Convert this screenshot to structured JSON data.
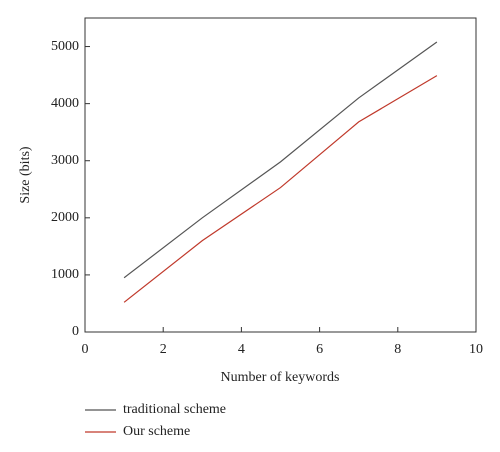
{
  "chart_data": {
    "type": "line",
    "x_label": "Number of keywords",
    "y_label": "Size (bits)",
    "xlim": [
      0,
      10
    ],
    "xticks": [
      0,
      2,
      4,
      6,
      8,
      10
    ],
    "ylim": [
      0,
      5500
    ],
    "yticks": [
      0,
      1000,
      2000,
      3000,
      4000,
      5000
    ],
    "x": [
      1,
      3,
      5,
      7,
      9
    ],
    "series": [
      {
        "name": "traditional scheme",
        "color": "#555555",
        "values": [
          950,
          2000,
          2980,
          4100,
          5080
        ]
      },
      {
        "name": "Our scheme",
        "color": "#c0392b",
        "values": [
          520,
          1600,
          2530,
          3680,
          4490
        ]
      }
    ]
  }
}
